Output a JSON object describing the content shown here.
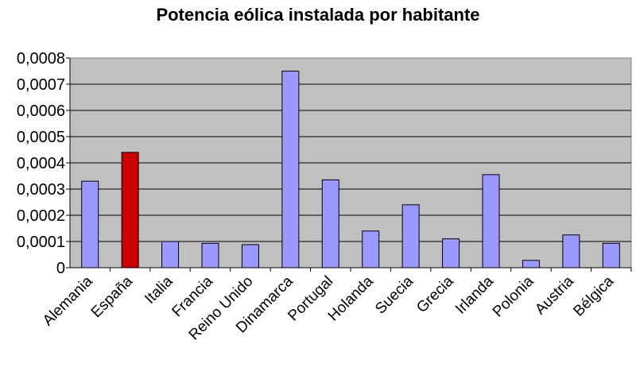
{
  "chart_data": {
    "type": "bar",
    "title": "Potencia eólica instalada por habitante",
    "xlabel": "",
    "ylabel": "",
    "ylim": [
      0,
      0.0008
    ],
    "yticks": [
      0,
      0.0001,
      0.0002,
      0.0003,
      0.0004,
      0.0005,
      0.0006,
      0.0007,
      0.0008
    ],
    "ytick_labels": [
      "0",
      "0,0001",
      "0,0002",
      "0,0003",
      "0,0004",
      "0,0005",
      "0,0006",
      "0,0007",
      "0,0008"
    ],
    "categories": [
      "Alemania",
      "España",
      "Italia",
      "Francia",
      "Reino Unido",
      "Dinamarca",
      "Portugal",
      "Holanda",
      "Suecia",
      "Grecia",
      "Irlanda",
      "Polonia",
      "Austria",
      "Bélgica"
    ],
    "values": [
      0.00033,
      0.00044,
      0.0001,
      9.3e-05,
      8.8e-05,
      0.00075,
      0.000335,
      0.00014,
      0.00024,
      0.00011,
      0.000355,
      2.8e-05,
      0.000125,
      9.3e-05
    ],
    "grid": true,
    "legend": "none",
    "colors": {
      "bar": "#9999ff",
      "highlight": "#cc0000",
      "plot_background": "#c0c0c0",
      "gridline": "#000000"
    },
    "highlight_category": "España"
  }
}
